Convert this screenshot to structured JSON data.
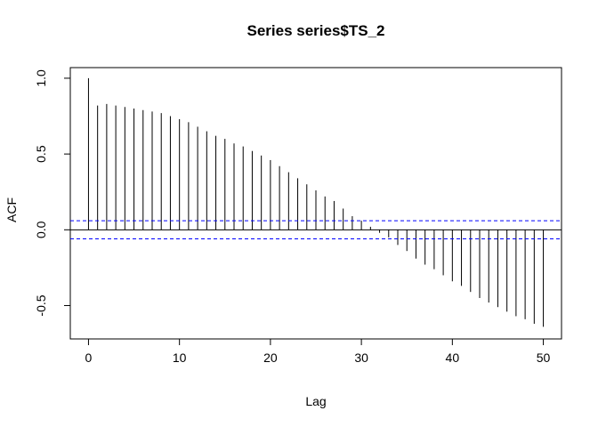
{
  "chart_data": {
    "type": "bar",
    "title": "Series  series$TS_2",
    "xlabel": "Lag",
    "ylabel": "ACF",
    "xlim": [
      -2,
      52
    ],
    "ylim": [
      -0.72,
      1.07
    ],
    "x_ticks": [
      0,
      10,
      20,
      30,
      40,
      50
    ],
    "y_ticks": [
      -0.5,
      0.0,
      0.5,
      1.0
    ],
    "y_tick_labels": [
      "-0.5",
      "0.0",
      "0.5",
      "1.0"
    ],
    "confidence_bound": 0.06,
    "confidence_color": "#0000ff",
    "bar_color": "#000000",
    "grid": false,
    "lags": [
      0,
      1,
      2,
      3,
      4,
      5,
      6,
      7,
      8,
      9,
      10,
      11,
      12,
      13,
      14,
      15,
      16,
      17,
      18,
      19,
      20,
      21,
      22,
      23,
      24,
      25,
      26,
      27,
      28,
      29,
      30,
      31,
      32,
      33,
      34,
      35,
      36,
      37,
      38,
      39,
      40,
      41,
      42,
      43,
      44,
      45,
      46,
      47,
      48,
      49,
      50
    ],
    "acf": [
      1.0,
      0.82,
      0.83,
      0.82,
      0.81,
      0.8,
      0.79,
      0.78,
      0.77,
      0.75,
      0.73,
      0.71,
      0.68,
      0.65,
      0.62,
      0.6,
      0.57,
      0.55,
      0.52,
      0.49,
      0.46,
      0.42,
      0.38,
      0.34,
      0.3,
      0.26,
      0.22,
      0.19,
      0.14,
      0.09,
      0.06,
      0.02,
      -0.02,
      -0.05,
      -0.1,
      -0.14,
      -0.19,
      -0.23,
      -0.26,
      -0.3,
      -0.34,
      -0.37,
      -0.41,
      -0.45,
      -0.48,
      -0.51,
      -0.54,
      -0.57,
      -0.59,
      -0.62,
      -0.64
    ]
  }
}
